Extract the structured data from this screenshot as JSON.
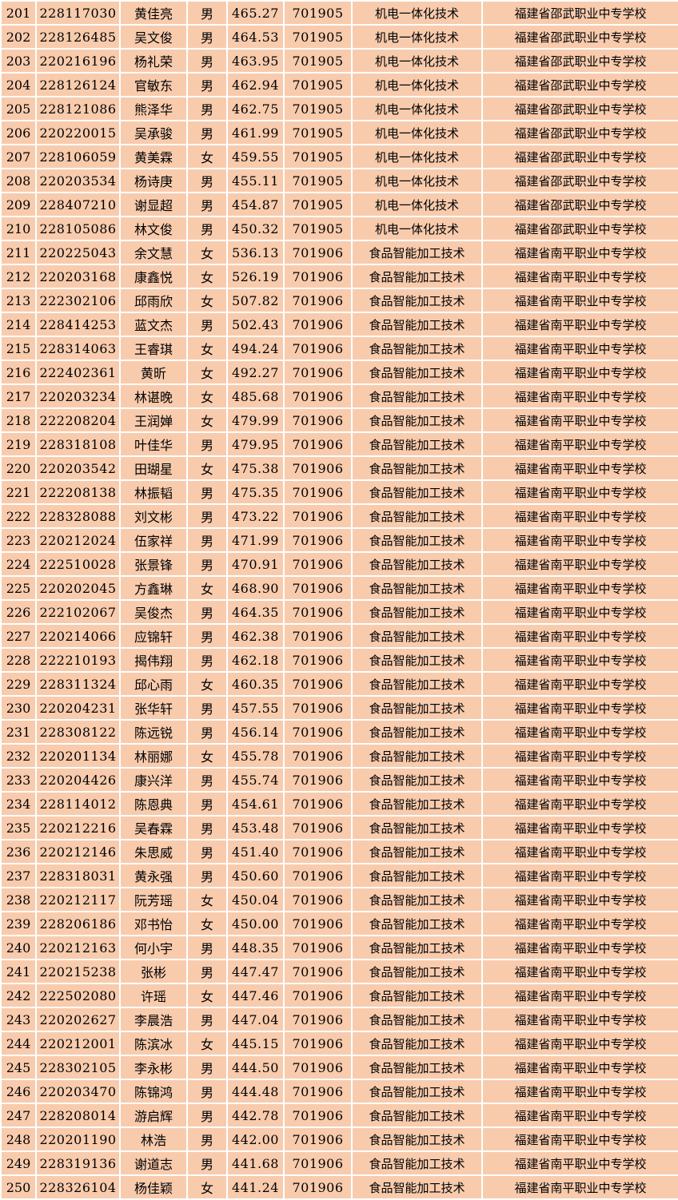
{
  "colors": {
    "cell_fill": "#F8CBAD",
    "grid_line": "#FFFFFF",
    "text": "#000000"
  },
  "table": {
    "rows": [
      [
        "201",
        "228117030",
        "黄佳亮",
        "男",
        "465.27",
        "701905",
        "机电一体化技术",
        "福建省邵武职业中专学校"
      ],
      [
        "202",
        "228126485",
        "吴文俊",
        "男",
        "464.53",
        "701905",
        "机电一体化技术",
        "福建省邵武职业中专学校"
      ],
      [
        "203",
        "220216196",
        "杨礼荣",
        "男",
        "463.95",
        "701905",
        "机电一体化技术",
        "福建省邵武职业中专学校"
      ],
      [
        "204",
        "228126124",
        "官敏东",
        "男",
        "462.94",
        "701905",
        "机电一体化技术",
        "福建省邵武职业中专学校"
      ],
      [
        "205",
        "228121086",
        "熊泽华",
        "男",
        "462.75",
        "701905",
        "机电一体化技术",
        "福建省邵武职业中专学校"
      ],
      [
        "206",
        "220220015",
        "吴承骏",
        "男",
        "461.99",
        "701905",
        "机电一体化技术",
        "福建省邵武职业中专学校"
      ],
      [
        "207",
        "228106059",
        "黄美霖",
        "女",
        "459.55",
        "701905",
        "机电一体化技术",
        "福建省邵武职业中专学校"
      ],
      [
        "208",
        "220203534",
        "杨诗庚",
        "男",
        "455.11",
        "701905",
        "机电一体化技术",
        "福建省邵武职业中专学校"
      ],
      [
        "209",
        "228407210",
        "谢显超",
        "男",
        "454.87",
        "701905",
        "机电一体化技术",
        "福建省邵武职业中专学校"
      ],
      [
        "210",
        "228105086",
        "林文俊",
        "男",
        "450.32",
        "701905",
        "机电一体化技术",
        "福建省邵武职业中专学校"
      ],
      [
        "211",
        "220225043",
        "余文慧",
        "女",
        "536.13",
        "701906",
        "食品智能加工技术",
        "福建省南平职业中专学校"
      ],
      [
        "212",
        "220203168",
        "康鑫悦",
        "女",
        "526.19",
        "701906",
        "食品智能加工技术",
        "福建省南平职业中专学校"
      ],
      [
        "213",
        "222302106",
        "邱雨欣",
        "女",
        "507.82",
        "701906",
        "食品智能加工技术",
        "福建省南平职业中专学校"
      ],
      [
        "214",
        "228414253",
        "蓝文杰",
        "男",
        "502.43",
        "701906",
        "食品智能加工技术",
        "福建省南平职业中专学校"
      ],
      [
        "215",
        "228314063",
        "王睿琪",
        "女",
        "494.24",
        "701906",
        "食品智能加工技术",
        "福建省南平职业中专学校"
      ],
      [
        "216",
        "222402361",
        "黄昕",
        "女",
        "492.27",
        "701906",
        "食品智能加工技术",
        "福建省南平职业中专学校"
      ],
      [
        "217",
        "220203234",
        "林谌晚",
        "女",
        "485.68",
        "701906",
        "食品智能加工技术",
        "福建省南平职业中专学校"
      ],
      [
        "218",
        "222208204",
        "王润婵",
        "女",
        "479.99",
        "701906",
        "食品智能加工技术",
        "福建省南平职业中专学校"
      ],
      [
        "219",
        "228318108",
        "叶佳华",
        "男",
        "479.95",
        "701906",
        "食品智能加工技术",
        "福建省南平职业中专学校"
      ],
      [
        "220",
        "220203542",
        "田瑚星",
        "女",
        "475.38",
        "701906",
        "食品智能加工技术",
        "福建省南平职业中专学校"
      ],
      [
        "221",
        "222208138",
        "林振韬",
        "男",
        "475.35",
        "701906",
        "食品智能加工技术",
        "福建省南平职业中专学校"
      ],
      [
        "222",
        "228328088",
        "刘文彬",
        "男",
        "473.22",
        "701906",
        "食品智能加工技术",
        "福建省南平职业中专学校"
      ],
      [
        "223",
        "220212024",
        "伍家祥",
        "男",
        "471.99",
        "701906",
        "食品智能加工技术",
        "福建省南平职业中专学校"
      ],
      [
        "224",
        "222510028",
        "张景锋",
        "男",
        "470.91",
        "701906",
        "食品智能加工技术",
        "福建省南平职业中专学校"
      ],
      [
        "225",
        "220202045",
        "方鑫琳",
        "女",
        "468.90",
        "701906",
        "食品智能加工技术",
        "福建省南平职业中专学校"
      ],
      [
        "226",
        "222102067",
        "吴俊杰",
        "男",
        "464.35",
        "701906",
        "食品智能加工技术",
        "福建省南平职业中专学校"
      ],
      [
        "227",
        "220214066",
        "应锦轩",
        "男",
        "462.38",
        "701906",
        "食品智能加工技术",
        "福建省南平职业中专学校"
      ],
      [
        "228",
        "222210193",
        "揭伟翔",
        "男",
        "462.18",
        "701906",
        "食品智能加工技术",
        "福建省南平职业中专学校"
      ],
      [
        "229",
        "228311324",
        "邱心雨",
        "女",
        "460.35",
        "701906",
        "食品智能加工技术",
        "福建省南平职业中专学校"
      ],
      [
        "230",
        "220204231",
        "张华轩",
        "男",
        "457.55",
        "701906",
        "食品智能加工技术",
        "福建省南平职业中专学校"
      ],
      [
        "231",
        "228308122",
        "陈远锐",
        "男",
        "456.14",
        "701906",
        "食品智能加工技术",
        "福建省南平职业中专学校"
      ],
      [
        "232",
        "220201134",
        "林丽娜",
        "女",
        "455.78",
        "701906",
        "食品智能加工技术",
        "福建省南平职业中专学校"
      ],
      [
        "233",
        "220204426",
        "康兴洋",
        "男",
        "455.74",
        "701906",
        "食品智能加工技术",
        "福建省南平职业中专学校"
      ],
      [
        "234",
        "228114012",
        "陈恩典",
        "男",
        "454.61",
        "701906",
        "食品智能加工技术",
        "福建省南平职业中专学校"
      ],
      [
        "235",
        "220212216",
        "吴春霖",
        "男",
        "453.48",
        "701906",
        "食品智能加工技术",
        "福建省南平职业中专学校"
      ],
      [
        "236",
        "220212146",
        "朱思威",
        "男",
        "451.40",
        "701906",
        "食品智能加工技术",
        "福建省南平职业中专学校"
      ],
      [
        "237",
        "228318031",
        "黄永强",
        "男",
        "450.60",
        "701906",
        "食品智能加工技术",
        "福建省南平职业中专学校"
      ],
      [
        "238",
        "220212117",
        "阮芳瑶",
        "女",
        "450.04",
        "701906",
        "食品智能加工技术",
        "福建省南平职业中专学校"
      ],
      [
        "239",
        "228206186",
        "邓书怡",
        "女",
        "450.00",
        "701906",
        "食品智能加工技术",
        "福建省南平职业中专学校"
      ],
      [
        "240",
        "220212163",
        "何小宇",
        "男",
        "448.35",
        "701906",
        "食品智能加工技术",
        "福建省南平职业中专学校"
      ],
      [
        "241",
        "220215238",
        "张彬",
        "男",
        "447.47",
        "701906",
        "食品智能加工技术",
        "福建省南平职业中专学校"
      ],
      [
        "242",
        "222502080",
        "许瑶",
        "女",
        "447.46",
        "701906",
        "食品智能加工技术",
        "福建省南平职业中专学校"
      ],
      [
        "243",
        "220202627",
        "李晨浩",
        "男",
        "447.04",
        "701906",
        "食品智能加工技术",
        "福建省南平职业中专学校"
      ],
      [
        "244",
        "220212001",
        "陈滨冰",
        "女",
        "445.15",
        "701906",
        "食品智能加工技术",
        "福建省南平职业中专学校"
      ],
      [
        "245",
        "228302105",
        "李永彬",
        "男",
        "444.50",
        "701906",
        "食品智能加工技术",
        "福建省南平职业中专学校"
      ],
      [
        "246",
        "220203470",
        "陈锦鸿",
        "男",
        "444.48",
        "701906",
        "食品智能加工技术",
        "福建省南平职业中专学校"
      ],
      [
        "247",
        "228208014",
        "游启辉",
        "男",
        "442.78",
        "701906",
        "食品智能加工技术",
        "福建省南平职业中专学校"
      ],
      [
        "248",
        "220201190",
        "林浩",
        "男",
        "442.00",
        "701906",
        "食品智能加工技术",
        "福建省南平职业中专学校"
      ],
      [
        "249",
        "228319136",
        "谢道志",
        "男",
        "441.68",
        "701906",
        "食品智能加工技术",
        "福建省南平职业中专学校"
      ],
      [
        "250",
        "228326104",
        "杨佳颖",
        "女",
        "441.24",
        "701906",
        "食品智能加工技术",
        "福建省南平职业中专学校"
      ]
    ]
  }
}
